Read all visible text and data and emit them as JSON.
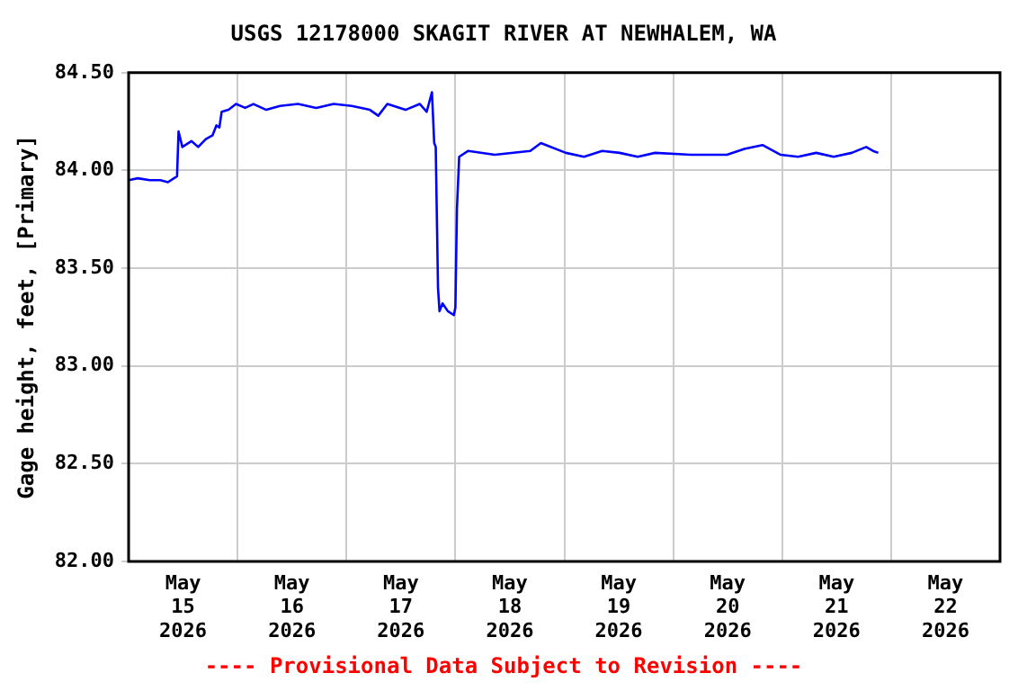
{
  "chart_data": {
    "type": "line",
    "title": "USGS 12178000 SKAGIT RIVER AT NEWHALEM, WA",
    "ylabel": "Gage height, feet, [Primary]",
    "annotations": [
      "---- Provisional Data Subject to Revision ----"
    ],
    "x": [
      "2026-05-15T00:00",
      "2026-05-15T02:00",
      "2026-05-15T04:40",
      "2026-05-15T07:00",
      "2026-05-15T08:40",
      "2026-05-15T10:40",
      "2026-05-15T11:00",
      "2026-05-15T11:50",
      "2026-05-15T13:50",
      "2026-05-15T15:20",
      "2026-05-15T17:00",
      "2026-05-15T18:30",
      "2026-05-15T19:20",
      "2026-05-15T20:00",
      "2026-05-15T20:30",
      "2026-05-15T22:00",
      "2026-05-15T23:40",
      "2026-05-16T01:40",
      "2026-05-16T03:30",
      "2026-05-16T06:20",
      "2026-05-16T09:20",
      "2026-05-16T13:20",
      "2026-05-16T17:20",
      "2026-05-16T21:10",
      "2026-05-17T01:10",
      "2026-05-17T05:10",
      "2026-05-17T07:00",
      "2026-05-17T09:00",
      "2026-05-17T13:00",
      "2026-05-17T16:10",
      "2026-05-17T17:40",
      "2026-05-17T18:50",
      "2026-05-17T19:20",
      "2026-05-17T19:40",
      "2026-05-17T20:10",
      "2026-05-17T20:30",
      "2026-05-17T21:10",
      "2026-05-17T22:20",
      "2026-05-17T23:40",
      "2026-05-18T00:00",
      "2026-05-18T00:20",
      "2026-05-18T00:50",
      "2026-05-18T02:50",
      "2026-05-18T08:40",
      "2026-05-18T16:30",
      "2026-05-18T18:50",
      "2026-05-19T00:20",
      "2026-05-19T04:20",
      "2026-05-19T08:20",
      "2026-05-19T12:10",
      "2026-05-19T16:10",
      "2026-05-19T20:00",
      "2026-05-20T04:00",
      "2026-05-20T11:50",
      "2026-05-20T15:40",
      "2026-05-20T19:40",
      "2026-05-20T23:40",
      "2026-05-21T03:30",
      "2026-05-21T07:30",
      "2026-05-21T11:20",
      "2026-05-21T15:20",
      "2026-05-21T18:30",
      "2026-05-21T20:00",
      "2026-05-21T21:10"
    ],
    "series": [
      {
        "color": "#0000ff",
        "values": [
          83.95,
          83.96,
          83.95,
          83.95,
          83.94,
          83.97,
          84.2,
          84.12,
          84.15,
          84.12,
          84.16,
          84.18,
          84.23,
          84.22,
          84.3,
          84.31,
          84.34,
          84.32,
          84.34,
          84.31,
          84.33,
          84.34,
          84.32,
          84.34,
          84.33,
          84.31,
          84.28,
          84.34,
          84.31,
          84.34,
          84.3,
          84.4,
          84.14,
          84.12,
          83.4,
          83.28,
          83.32,
          83.28,
          83.26,
          83.3,
          83.8,
          84.07,
          84.1,
          84.08,
          84.1,
          84.14,
          84.09,
          84.07,
          84.1,
          84.09,
          84.07,
          84.09,
          84.08,
          84.08,
          84.11,
          84.13,
          84.08,
          84.07,
          84.09,
          84.07,
          84.09,
          84.12,
          84.1,
          84.09
        ]
      }
    ],
    "xlim": [
      "2026-05-15T00:00",
      "2026-05-23T00:00"
    ],
    "xticks": [
      {
        "value": "2026-05-15T12:00",
        "label": "May 15 2026"
      },
      {
        "value": "2026-05-16T00:00",
        "label": null
      },
      {
        "value": "2026-05-16T12:00",
        "label": "May 16 2026"
      },
      {
        "value": "2026-05-17T00:00",
        "label": null
      },
      {
        "value": "2026-05-17T12:00",
        "label": "May 17 2026"
      },
      {
        "value": "2026-05-18T00:00",
        "label": null
      },
      {
        "value": "2026-05-18T12:00",
        "label": "May 18 2026"
      },
      {
        "value": "2026-05-19T00:00",
        "label": null
      },
      {
        "value": "2026-05-19T12:00",
        "label": "May 19 2026"
      },
      {
        "value": "2026-05-20T00:00",
        "label": null
      },
      {
        "value": "2026-05-20T12:00",
        "label": "May 20 2026"
      },
      {
        "value": "2026-05-21T00:00",
        "label": null
      },
      {
        "value": "2026-05-21T12:00",
        "label": "May 21 2026"
      },
      {
        "value": "2026-05-22T00:00",
        "label": null
      },
      {
        "value": "2026-05-22T12:00",
        "label": "May 22 2026"
      }
    ],
    "ylim": [
      82.0,
      84.5
    ],
    "yticks": [
      {
        "value": 82.0,
        "label": "82.00"
      },
      {
        "value": 82.5,
        "label": "82.50"
      },
      {
        "value": 83.0,
        "label": "83.00"
      },
      {
        "value": 83.5,
        "label": "83.50"
      },
      {
        "value": 84.0,
        "label": "84.00"
      },
      {
        "value": 84.5,
        "label": "84.50"
      }
    ],
    "grid": true,
    "legend": false,
    "marker": "none",
    "line_style": "solid"
  }
}
